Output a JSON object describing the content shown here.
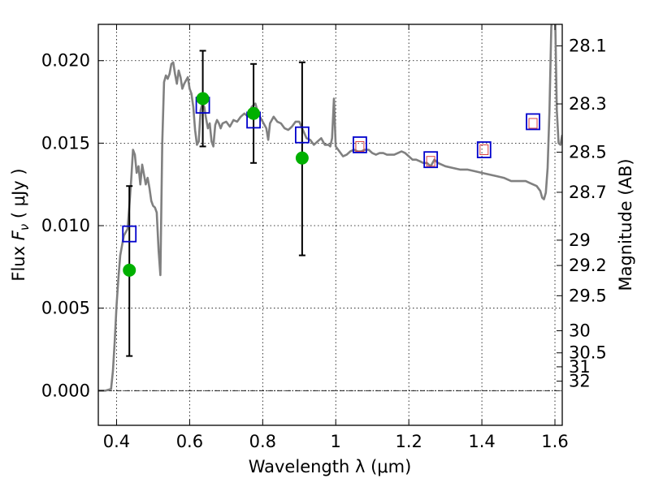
{
  "chart_data": {
    "type": "scatter",
    "xlabel": "Wavelength  λ (μm)",
    "ylabel": "Flux  F_ν  ( μJy )",
    "ylabel_parts": {
      "pre": "Flux  ",
      "sym": "F",
      "sub": "ν",
      "post": "  ( μJy )"
    },
    "ylabel_right": "Magnitude (AB)",
    "xlim": [
      0.35,
      1.62
    ],
    "ylim": [
      -0.0021,
      0.0222
    ],
    "grid": true,
    "x_ticks": [
      {
        "v": 0.4,
        "label": "0.4"
      },
      {
        "v": 0.6,
        "label": "0.6"
      },
      {
        "v": 0.8,
        "label": "0.8"
      },
      {
        "v": 1.0,
        "label": "1"
      },
      {
        "v": 1.2,
        "label": "1.2"
      },
      {
        "v": 1.4,
        "label": "1.4"
      },
      {
        "v": 1.6,
        "label": "1.6"
      }
    ],
    "y_ticks": [
      {
        "v": 0.0,
        "label": "0.000"
      },
      {
        "v": 0.005,
        "label": "0.005"
      },
      {
        "v": 0.01,
        "label": "0.010"
      },
      {
        "v": 0.015,
        "label": "0.015"
      },
      {
        "v": 0.02,
        "label": "0.020"
      }
    ],
    "mag_ticks": [
      {
        "m": 28.1,
        "label": "28.1"
      },
      {
        "m": 28.3,
        "label": "28.3"
      },
      {
        "m": 28.5,
        "label": "28.5"
      },
      {
        "m": 28.7,
        "label": "28.7"
      },
      {
        "m": 29,
        "label": "29"
      },
      {
        "m": 29.2,
        "label": "29.2"
      },
      {
        "m": 29.5,
        "label": "29.5"
      },
      {
        "m": 30,
        "label": "30"
      },
      {
        "m": 30.5,
        "label": "30.5"
      },
      {
        "m": 31,
        "label": "31"
      },
      {
        "m": 32,
        "label": "32"
      }
    ],
    "colors": {
      "sed": "#808080",
      "obs": "#00b000",
      "model_box": "#0000cc",
      "model_inner": "#d84040",
      "errorbar": "#000000"
    },
    "sed_curve": [
      [
        0.35,
        0.0
      ],
      [
        0.37,
        0.0
      ],
      [
        0.385,
        0.0001
      ],
      [
        0.39,
        0.0012
      ],
      [
        0.395,
        0.003
      ],
      [
        0.4,
        0.0052
      ],
      [
        0.405,
        0.0068
      ],
      [
        0.41,
        0.0082
      ],
      [
        0.415,
        0.0088
      ],
      [
        0.42,
        0.0094
      ],
      [
        0.425,
        0.0096
      ],
      [
        0.43,
        0.0098
      ],
      [
        0.435,
        0.0112
      ],
      [
        0.44,
        0.0128
      ],
      [
        0.445,
        0.0146
      ],
      [
        0.45,
        0.0143
      ],
      [
        0.455,
        0.0132
      ],
      [
        0.46,
        0.0136
      ],
      [
        0.465,
        0.0125
      ],
      [
        0.47,
        0.0137
      ],
      [
        0.475,
        0.0131
      ],
      [
        0.48,
        0.0125
      ],
      [
        0.485,
        0.0129
      ],
      [
        0.49,
        0.0123
      ],
      [
        0.495,
        0.0115
      ],
      [
        0.5,
        0.0112
      ],
      [
        0.505,
        0.0111
      ],
      [
        0.51,
        0.0108
      ],
      [
        0.515,
        0.0085
      ],
      [
        0.52,
        0.007
      ],
      [
        0.525,
        0.015
      ],
      [
        0.53,
        0.0187
      ],
      [
        0.535,
        0.0191
      ],
      [
        0.54,
        0.0189
      ],
      [
        0.545,
        0.0192
      ],
      [
        0.55,
        0.0198
      ],
      [
        0.555,
        0.0199
      ],
      [
        0.56,
        0.0192
      ],
      [
        0.565,
        0.0186
      ],
      [
        0.57,
        0.0194
      ],
      [
        0.575,
        0.019
      ],
      [
        0.58,
        0.0183
      ],
      [
        0.585,
        0.0186
      ],
      [
        0.59,
        0.0188
      ],
      [
        0.595,
        0.019
      ],
      [
        0.6,
        0.0183
      ],
      [
        0.605,
        0.018
      ],
      [
        0.61,
        0.0172
      ],
      [
        0.615,
        0.0158
      ],
      [
        0.62,
        0.0149
      ],
      [
        0.625,
        0.0151
      ],
      [
        0.63,
        0.017
      ],
      [
        0.635,
        0.0174
      ],
      [
        0.64,
        0.0172
      ],
      [
        0.645,
        0.0165
      ],
      [
        0.65,
        0.0159
      ],
      [
        0.655,
        0.0162
      ],
      [
        0.66,
        0.0151
      ],
      [
        0.665,
        0.0148
      ],
      [
        0.67,
        0.0161
      ],
      [
        0.675,
        0.0164
      ],
      [
        0.68,
        0.0162
      ],
      [
        0.685,
        0.0159
      ],
      [
        0.69,
        0.0162
      ],
      [
        0.7,
        0.0163
      ],
      [
        0.71,
        0.016
      ],
      [
        0.72,
        0.0164
      ],
      [
        0.73,
        0.0163
      ],
      [
        0.74,
        0.0166
      ],
      [
        0.75,
        0.0168
      ],
      [
        0.76,
        0.0166
      ],
      [
        0.77,
        0.0172
      ],
      [
        0.78,
        0.0174
      ],
      [
        0.785,
        0.017
      ],
      [
        0.79,
        0.0167
      ],
      [
        0.8,
        0.0163
      ],
      [
        0.81,
        0.0159
      ],
      [
        0.815,
        0.0152
      ],
      [
        0.82,
        0.0162
      ],
      [
        0.83,
        0.0166
      ],
      [
        0.84,
        0.0163
      ],
      [
        0.85,
        0.0162
      ],
      [
        0.86,
        0.0159
      ],
      [
        0.87,
        0.0158
      ],
      [
        0.88,
        0.016
      ],
      [
        0.89,
        0.0163
      ],
      [
        0.9,
        0.0163
      ],
      [
        0.91,
        0.0158
      ],
      [
        0.92,
        0.0153
      ],
      [
        0.93,
        0.0152
      ],
      [
        0.94,
        0.0149
      ],
      [
        0.95,
        0.0151
      ],
      [
        0.96,
        0.0153
      ],
      [
        0.97,
        0.0149
      ],
      [
        0.98,
        0.0149
      ],
      [
        0.985,
        0.0148
      ],
      [
        0.99,
        0.0153
      ],
      [
        0.995,
        0.0177
      ],
      [
        1.0,
        0.0148
      ],
      [
        1.01,
        0.0145
      ],
      [
        1.02,
        0.0142
      ],
      [
        1.03,
        0.0143
      ],
      [
        1.04,
        0.0145
      ],
      [
        1.05,
        0.0146
      ],
      [
        1.06,
        0.0145
      ],
      [
        1.07,
        0.0145
      ],
      [
        1.08,
        0.0146
      ],
      [
        1.09,
        0.0146
      ],
      [
        1.1,
        0.0144
      ],
      [
        1.11,
        0.0143
      ],
      [
        1.12,
        0.0144
      ],
      [
        1.13,
        0.0144
      ],
      [
        1.14,
        0.0143
      ],
      [
        1.15,
        0.0143
      ],
      [
        1.16,
        0.0143
      ],
      [
        1.17,
        0.0144
      ],
      [
        1.18,
        0.0145
      ],
      [
        1.19,
        0.0144
      ],
      [
        1.2,
        0.0142
      ],
      [
        1.21,
        0.014
      ],
      [
        1.22,
        0.014
      ],
      [
        1.23,
        0.0139
      ],
      [
        1.24,
        0.0138
      ],
      [
        1.25,
        0.0138
      ],
      [
        1.26,
        0.0136
      ],
      [
        1.27,
        0.014
      ],
      [
        1.28,
        0.0138
      ],
      [
        1.3,
        0.0136
      ],
      [
        1.32,
        0.0135
      ],
      [
        1.34,
        0.0134
      ],
      [
        1.36,
        0.0134
      ],
      [
        1.38,
        0.0133
      ],
      [
        1.4,
        0.0132
      ],
      [
        1.42,
        0.0131
      ],
      [
        1.44,
        0.013
      ],
      [
        1.46,
        0.0129
      ],
      [
        1.48,
        0.0127
      ],
      [
        1.5,
        0.0127
      ],
      [
        1.52,
        0.0127
      ],
      [
        1.53,
        0.0126
      ],
      [
        1.54,
        0.0125
      ],
      [
        1.55,
        0.0124
      ],
      [
        1.56,
        0.0121
      ],
      [
        1.565,
        0.0117
      ],
      [
        1.57,
        0.0116
      ],
      [
        1.575,
        0.012
      ],
      [
        1.58,
        0.0135
      ],
      [
        1.585,
        0.017
      ],
      [
        1.59,
        0.022
      ],
      [
        1.595,
        0.0235
      ],
      [
        1.6,
        0.0235
      ],
      [
        1.605,
        0.017
      ],
      [
        1.61,
        0.015
      ],
      [
        1.615,
        0.0149
      ],
      [
        1.62,
        0.0155
      ]
    ],
    "observed": [
      {
        "x": 0.435,
        "y": 0.0073,
        "yerr_low": 0.0021,
        "yerr_high": 0.0124
      },
      {
        "x": 0.636,
        "y": 0.0177,
        "yerr_low": 0.0148,
        "yerr_high": 0.0206
      },
      {
        "x": 0.775,
        "y": 0.0168,
        "yerr_low": 0.0138,
        "yerr_high": 0.0198
      },
      {
        "x": 0.908,
        "y": 0.0141,
        "yerr_low": 0.0082,
        "yerr_high": 0.0199
      }
    ],
    "model_fluxes": [
      {
        "x": 0.435,
        "y": 0.0095
      },
      {
        "x": 0.636,
        "y": 0.0173
      },
      {
        "x": 0.775,
        "y": 0.0164
      },
      {
        "x": 0.908,
        "y": 0.0155
      },
      {
        "x": 1.066,
        "y": 0.0149
      },
      {
        "x": 1.26,
        "y": 0.014
      },
      {
        "x": 1.406,
        "y": 0.0146
      },
      {
        "x": 1.54,
        "y": 0.0163
      }
    ],
    "model_fluxes_inner": [
      {
        "x": 1.066,
        "y": 0.0148
      },
      {
        "x": 1.26,
        "y": 0.0139
      },
      {
        "x": 1.406,
        "y": 0.0146
      },
      {
        "x": 1.54,
        "y": 0.0162
      }
    ]
  }
}
